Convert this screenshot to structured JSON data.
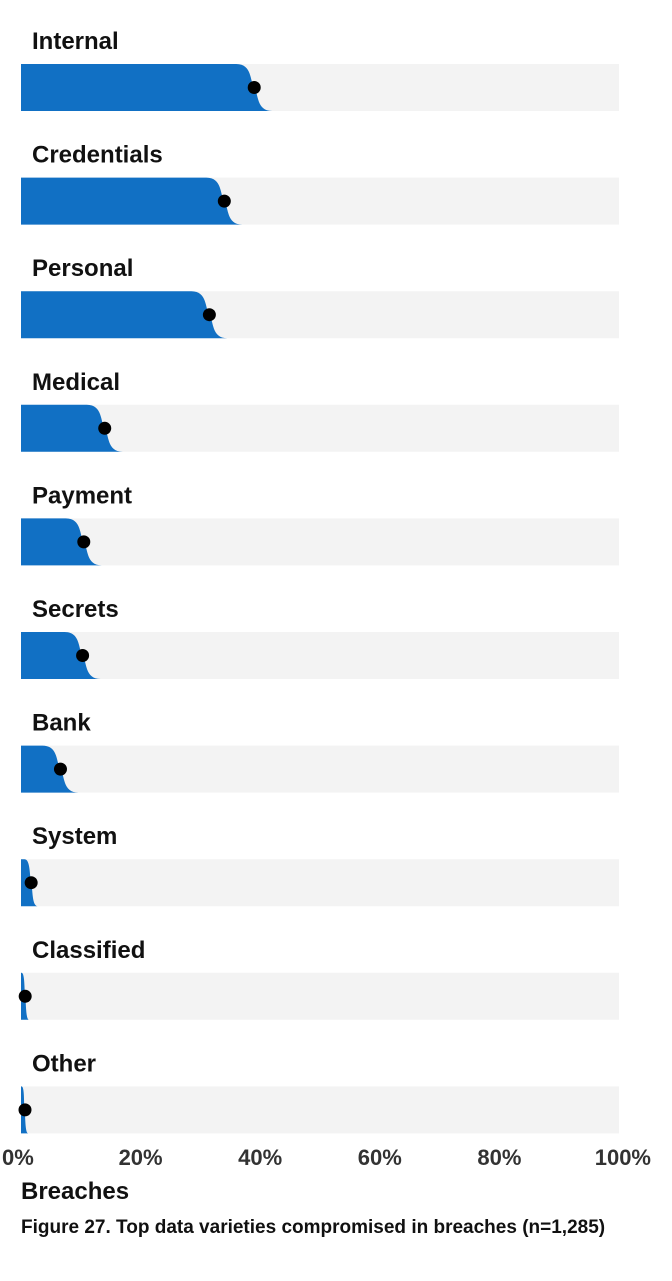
{
  "chart_data": {
    "type": "bar",
    "orientation": "horizontal",
    "categories": [
      "Internal",
      "Credentials",
      "Personal",
      "Medical",
      "Payment",
      "Secrets",
      "Bank",
      "System",
      "Classified",
      "Other"
    ],
    "values": [
      39,
      34,
      31.5,
      14,
      10.5,
      10.3,
      6.6,
      1.7,
      0.7,
      0.6
    ],
    "xlabel": "Breaches",
    "xlim": [
      0,
      100
    ],
    "xticks": [
      0,
      20,
      40,
      60,
      80,
      100
    ],
    "xtick_labels": [
      "0%",
      "20%",
      "40%",
      "60%",
      "80%",
      "100%"
    ],
    "grid": false,
    "colors": {
      "bar": "#1170c4",
      "track": "#f3f3f3",
      "point": "#000000"
    }
  },
  "caption": "Figure 27. Top data varieties compromised in breaches (n=1,285)"
}
